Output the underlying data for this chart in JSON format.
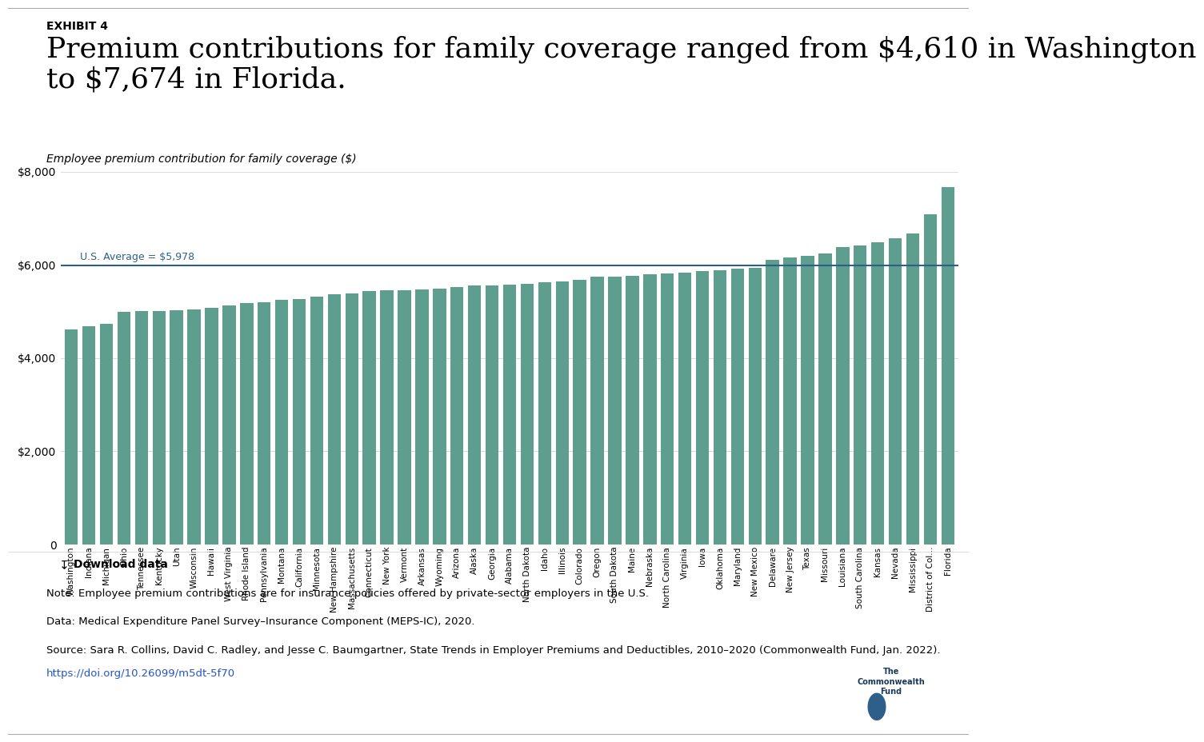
{
  "exhibit_label": "EXHIBIT 4",
  "title_line1": "Premium contributions for family coverage ranged from $4,610 in Washington",
  "title_line2": "to $7,674 in Florida.",
  "subtitle": "Employee premium contribution for family coverage ($)",
  "bar_color": "#5d9e8e",
  "avg_line_color": "#2e5f8a",
  "avg_value": 5978,
  "avg_label": "U.S. Average = $5,978",
  "ylim": [
    0,
    8000
  ],
  "yticks": [
    0,
    2000,
    4000,
    6000,
    8000
  ],
  "ytick_labels": [
    "0",
    "$2,000",
    "$4,000",
    "$6,000",
    "$8,000"
  ],
  "note": "Note: Employee premium contributions are for insurance policies offered by private-sector employers in the U.S.",
  "data_source": "Data: Medical Expenditure Panel Survey–Insurance Component (MEPS-IC), 2020.",
  "source": "Source: Sara R. Collins, David C. Radley, and Jesse C. Baumgartner, State Trends in Employer Premiums and Deductibles, 2010–2020 (Commonwealth Fund, Jan. 2022).",
  "url": "https://doi.org/10.26099/m5dt-5f70",
  "download_label": "Download data",
  "states": [
    "Washington",
    "Indiana",
    "Michigan",
    "Ohio",
    "Tennessee",
    "Kentucky",
    "Utah",
    "Wisconsin",
    "Hawaii",
    "West Virginia",
    "Rhode Island",
    "Pennsylvania",
    "Montana",
    "California",
    "Minnesota",
    "New Hampshire",
    "Massachusetts",
    "Connecticut",
    "New York",
    "Vermont",
    "Arkansas",
    "Wyoming",
    "Arizona",
    "Alaska",
    "Georgia",
    "Alabama",
    "North Dakota",
    "Idaho",
    "Illinois",
    "Colorado",
    "Oregon",
    "South Dakota",
    "Maine",
    "Nebraska",
    "North Carolina",
    "Virginia",
    "Iowa",
    "Oklahoma",
    "Maryland",
    "New Mexico",
    "Delaware",
    "New Jersey",
    "Texas",
    "Missouri",
    "Louisiana",
    "South Carolina",
    "Kansas",
    "Nevada",
    "Mississippi",
    "District of Col...",
    "Florida"
  ],
  "values": [
    4610,
    4680,
    4730,
    4990,
    5000,
    5010,
    5030,
    5040,
    5080,
    5120,
    5180,
    5200,
    5240,
    5270,
    5310,
    5360,
    5380,
    5430,
    5450,
    5460,
    5480,
    5490,
    5530,
    5550,
    5560,
    5580,
    5600,
    5620,
    5640,
    5680,
    5740,
    5750,
    5770,
    5800,
    5820,
    5840,
    5860,
    5880,
    5910,
    5930,
    6100,
    6150,
    6200,
    6250,
    6380,
    6420,
    6480,
    6570,
    6670,
    7090,
    7674
  ],
  "background_color": "#ffffff",
  "title_fontsize": 26,
  "exhibit_fontsize": 10,
  "subtitle_fontsize": 10,
  "tick_fontsize": 10,
  "note_fontsize": 9.5
}
